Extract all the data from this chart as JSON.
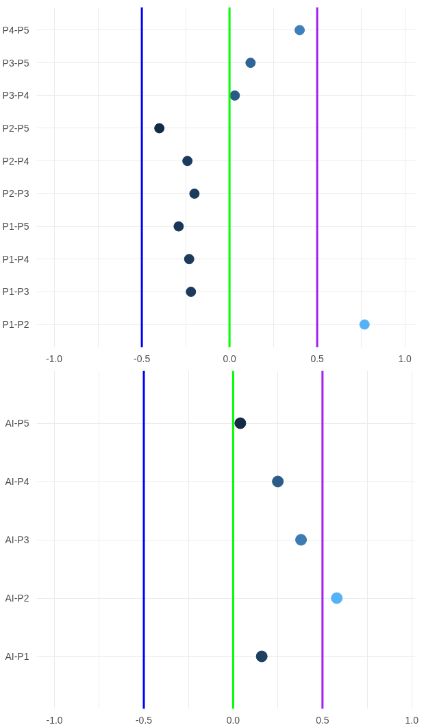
{
  "chart_data": [
    {
      "type": "scatter",
      "orientation": "horizontal",
      "categories": [
        "P4-P5",
        "P3-P5",
        "P3-P4",
        "P2-P5",
        "P2-P4",
        "P2-P3",
        "P1-P5",
        "P1-P4",
        "P1-P3",
        "P1-P2"
      ],
      "values": [
        0.4,
        0.12,
        0.03,
        -0.4,
        -0.24,
        -0.2,
        -0.29,
        -0.23,
        -0.22,
        0.77
      ],
      "colors": [
        "#3f7fb8",
        "#2f6594",
        "#2a5a85",
        "#132b45",
        "#1b3a5c",
        "#1c3b5c",
        "#193659",
        "#1c3b5c",
        "#1c3b5c",
        "#56b1f7"
      ],
      "xlim": [
        -1.1,
        1.06
      ],
      "xticks": [
        {
          "value": -1,
          "label": "-1.0"
        },
        {
          "value": -0.75,
          "label": null
        },
        {
          "value": -0.5,
          "label": "-0.5"
        },
        {
          "value": -0.25,
          "label": null
        },
        {
          "value": 0,
          "label": "0.0"
        },
        {
          "value": 0.25,
          "label": null
        },
        {
          "value": 0.5,
          "label": "0.5"
        },
        {
          "value": 0.75,
          "label": null
        },
        {
          "value": 1,
          "label": "1.0"
        }
      ],
      "ref_lines": [
        {
          "axis": "x",
          "value": -0.5,
          "color": "#0000ff"
        },
        {
          "axis": "x",
          "value": 0,
          "color": "#00ff00"
        },
        {
          "axis": "x",
          "value": 0.5,
          "color": "#a020f0"
        }
      ],
      "grid": true,
      "marker": "circle",
      "legend": false
    },
    {
      "type": "scatter",
      "orientation": "horizontal",
      "categories": [
        "AI-P5",
        "AI-P4",
        "AI-P3",
        "AI-P2",
        "AI-P1"
      ],
      "values": [
        0.04,
        0.25,
        0.38,
        0.58,
        0.16
      ],
      "colors": [
        "#132b43",
        "#2b5b87",
        "#3d7bb2",
        "#56b1f7",
        "#1d3f60"
      ],
      "xlim": [
        -1.1,
        1.02
      ],
      "xticks": [
        {
          "value": -1,
          "label": "-1.0"
        },
        {
          "value": -0.75,
          "label": null
        },
        {
          "value": -0.5,
          "label": "-0.5"
        },
        {
          "value": -0.25,
          "label": null
        },
        {
          "value": 0,
          "label": "0.0"
        },
        {
          "value": 0.25,
          "label": null
        },
        {
          "value": 0.5,
          "label": "0.5"
        },
        {
          "value": 0.75,
          "label": null
        },
        {
          "value": 1,
          "label": "1.0"
        }
      ],
      "ref_lines": [
        {
          "axis": "x",
          "value": -0.5,
          "color": "#0000ff"
        },
        {
          "axis": "x",
          "value": 0,
          "color": "#00ff00"
        },
        {
          "axis": "x",
          "value": 0.5,
          "color": "#a020f0"
        }
      ],
      "grid": true,
      "marker": "circle",
      "legend": false
    }
  ]
}
